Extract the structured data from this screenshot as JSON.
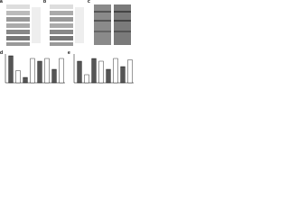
{
  "panels": [
    {
      "label": "a"
    },
    {
      "label": "b"
    },
    {
      "label": "c"
    },
    {
      "label": "d",
      "values": [
        1.0,
        0.45,
        0.2,
        0.9,
        0.8,
        0.9,
        0.5,
        0.9
      ]
    },
    {
      "label": "e",
      "values": [
        0.8,
        0.3,
        0.9,
        0.8,
        0.5,
        0.9,
        0.6,
        0.85
      ]
    }
  ]
}
